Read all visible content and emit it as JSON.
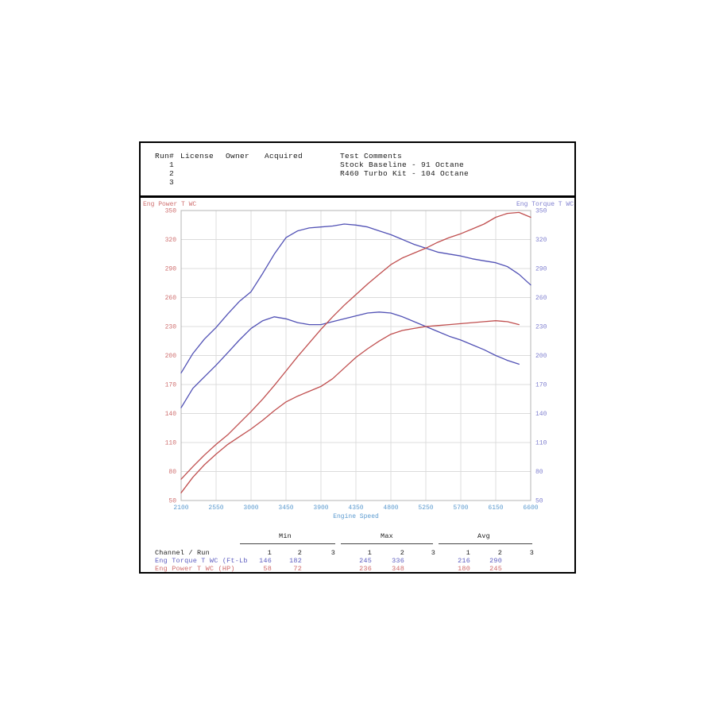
{
  "header": {
    "columns": {
      "run": "Run#",
      "license": "License",
      "owner": "Owner",
      "acquired": "Acquired",
      "comments": "Test Comments"
    },
    "runs": [
      {
        "num": "1",
        "comment": "Stock Baseline - 91 Octane"
      },
      {
        "num": "2",
        "comment": "R460 Turbo Kit - 104 Octane"
      },
      {
        "num": "3",
        "comment": ""
      }
    ]
  },
  "chart_data": {
    "type": "line",
    "x_axis": {
      "label": "Engine Speed",
      "range": [
        2100,
        6600
      ],
      "ticks": [
        2100,
        2550,
        3000,
        3450,
        3900,
        4350,
        4800,
        5250,
        5700,
        6150,
        6600
      ],
      "color": "#5c9bd0"
    },
    "left_axis": {
      "label": "Eng Power T WC",
      "range": [
        50,
        350
      ],
      "ticks": [
        350,
        320,
        290,
        260,
        230,
        200,
        170,
        140,
        110,
        80,
        50
      ],
      "color": "#cf6f6f"
    },
    "right_axis": {
      "label": "Eng Torque T WC",
      "range": [
        50,
        350
      ],
      "ticks": [
        350,
        320,
        290,
        260,
        230,
        200,
        170,
        140,
        110,
        80,
        50
      ],
      "color": "#8080d0"
    },
    "grid": true,
    "legend": "none",
    "series": [
      {
        "name": "Eng Torque T WC Run 2",
        "unit": "Ft-Lb",
        "color": "#5151b5",
        "points": [
          [
            2100,
            182
          ],
          [
            2250,
            202
          ],
          [
            2400,
            217
          ],
          [
            2550,
            229
          ],
          [
            2700,
            243
          ],
          [
            2850,
            256
          ],
          [
            3000,
            266
          ],
          [
            3150,
            285
          ],
          [
            3300,
            305
          ],
          [
            3450,
            322
          ],
          [
            3600,
            329
          ],
          [
            3750,
            332
          ],
          [
            3900,
            333
          ],
          [
            4050,
            334
          ],
          [
            4200,
            336
          ],
          [
            4350,
            335
          ],
          [
            4500,
            333
          ],
          [
            4650,
            329
          ],
          [
            4800,
            325
          ],
          [
            4950,
            320
          ],
          [
            5100,
            315
          ],
          [
            5250,
            311
          ],
          [
            5400,
            307
          ],
          [
            5550,
            305
          ],
          [
            5700,
            303
          ],
          [
            5850,
            300
          ],
          [
            6000,
            298
          ],
          [
            6150,
            296
          ],
          [
            6300,
            292
          ],
          [
            6450,
            284
          ],
          [
            6600,
            273
          ]
        ]
      },
      {
        "name": "Eng Torque T WC Run 1",
        "unit": "Ft-Lb",
        "color": "#5151b5",
        "points": [
          [
            2100,
            146
          ],
          [
            2250,
            166
          ],
          [
            2400,
            178
          ],
          [
            2550,
            190
          ],
          [
            2700,
            203
          ],
          [
            2850,
            216
          ],
          [
            3000,
            228
          ],
          [
            3150,
            236
          ],
          [
            3300,
            240
          ],
          [
            3450,
            238
          ],
          [
            3600,
            234
          ],
          [
            3750,
            232
          ],
          [
            3900,
            232
          ],
          [
            4050,
            235
          ],
          [
            4200,
            238
          ],
          [
            4350,
            241
          ],
          [
            4500,
            244
          ],
          [
            4650,
            245
          ],
          [
            4800,
            244
          ],
          [
            4950,
            240
          ],
          [
            5100,
            235
          ],
          [
            5250,
            230
          ],
          [
            5400,
            225
          ],
          [
            5550,
            220
          ],
          [
            5700,
            216
          ],
          [
            5850,
            211
          ],
          [
            6000,
            206
          ],
          [
            6150,
            200
          ],
          [
            6300,
            195
          ],
          [
            6450,
            191
          ]
        ]
      },
      {
        "name": "Eng Power T WC Run 2",
        "unit": "HP",
        "color": "#c04f4f",
        "points": [
          [
            2100,
            72
          ],
          [
            2250,
            85
          ],
          [
            2400,
            97
          ],
          [
            2550,
            108
          ],
          [
            2700,
            118
          ],
          [
            2850,
            130
          ],
          [
            3000,
            142
          ],
          [
            3150,
            155
          ],
          [
            3300,
            169
          ],
          [
            3450,
            184
          ],
          [
            3600,
            199
          ],
          [
            3750,
            213
          ],
          [
            3900,
            227
          ],
          [
            4050,
            240
          ],
          [
            4200,
            252
          ],
          [
            4350,
            263
          ],
          [
            4500,
            274
          ],
          [
            4650,
            284
          ],
          [
            4800,
            294
          ],
          [
            4950,
            301
          ],
          [
            5100,
            306
          ],
          [
            5250,
            311
          ],
          [
            5400,
            317
          ],
          [
            5550,
            322
          ],
          [
            5700,
            326
          ],
          [
            5850,
            331
          ],
          [
            6000,
            336
          ],
          [
            6150,
            343
          ],
          [
            6300,
            347
          ],
          [
            6450,
            348
          ],
          [
            6600,
            343
          ]
        ]
      },
      {
        "name": "Eng Power T WC Run 1",
        "unit": "HP",
        "color": "#c04f4f",
        "points": [
          [
            2100,
            58
          ],
          [
            2250,
            74
          ],
          [
            2400,
            87
          ],
          [
            2550,
            98
          ],
          [
            2700,
            108
          ],
          [
            2850,
            116
          ],
          [
            3000,
            124
          ],
          [
            3150,
            133
          ],
          [
            3300,
            143
          ],
          [
            3450,
            152
          ],
          [
            3600,
            158
          ],
          [
            3750,
            163
          ],
          [
            3900,
            168
          ],
          [
            4050,
            176
          ],
          [
            4200,
            187
          ],
          [
            4350,
            198
          ],
          [
            4500,
            207
          ],
          [
            4650,
            215
          ],
          [
            4800,
            222
          ],
          [
            4950,
            226
          ],
          [
            5100,
            228
          ],
          [
            5250,
            230
          ],
          [
            5400,
            231
          ],
          [
            5550,
            232
          ],
          [
            5700,
            233
          ],
          [
            5850,
            234
          ],
          [
            6000,
            235
          ],
          [
            6150,
            236
          ],
          [
            6300,
            235
          ],
          [
            6450,
            232
          ]
        ]
      }
    ]
  },
  "stats_table": {
    "row_label_header": "Channel / Run",
    "group_headers": [
      "Min",
      "Max",
      "Avg"
    ],
    "run_headers": [
      "1",
      "2",
      "3"
    ],
    "rows": [
      {
        "label": "Eng Torque T WC (Ft-Lb",
        "min": [
          "146",
          "182",
          ""
        ],
        "max": [
          "245",
          "336",
          ""
        ],
        "avg": [
          "216",
          "290",
          ""
        ]
      },
      {
        "label": "Eng Power T WC (HP)",
        "min": [
          "58",
          "72",
          ""
        ],
        "max": [
          "236",
          "348",
          ""
        ],
        "avg": [
          "180",
          "245",
          ""
        ]
      }
    ]
  }
}
